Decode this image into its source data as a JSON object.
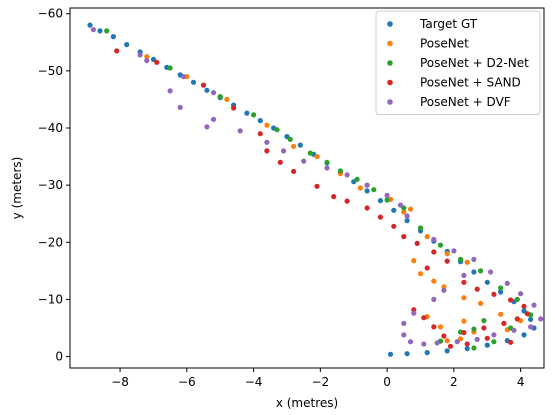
{
  "chart_data": {
    "type": "scatter",
    "title": "",
    "xlabel": "x (metres)",
    "ylabel": "y (meters)",
    "xlim": [
      -9.5,
      4.7
    ],
    "ylim": [
      2,
      -61
    ],
    "y_inverted": true,
    "xticks": [
      -8,
      -6,
      -4,
      -2,
      0,
      2,
      4
    ],
    "xtick_labels": [
      "−8",
      "−6",
      "−4",
      "−2",
      "0",
      "2",
      "4"
    ],
    "yticks": [
      0,
      -10,
      -20,
      -30,
      -40,
      -50,
      -60
    ],
    "ytick_labels": [
      "0",
      "−10",
      "−20",
      "−30",
      "−40",
      "−50",
      "−60"
    ],
    "grid": false,
    "legend_position": "top-right",
    "series": [
      {
        "name": "Target GT",
        "color": "#1f77b4",
        "points": [
          [
            -8.9,
            -58
          ],
          [
            -8.6,
            -57
          ],
          [
            -8.2,
            -56
          ],
          [
            -7.8,
            -54.6
          ],
          [
            -7.4,
            -53.3
          ],
          [
            -7,
            -52
          ],
          [
            -6.6,
            -50.6
          ],
          [
            -6.2,
            -49.3
          ],
          [
            -5.8,
            -48
          ],
          [
            -5.4,
            -46.6
          ],
          [
            -5,
            -45.3
          ],
          [
            -4.6,
            -44
          ],
          [
            -4.2,
            -42.6
          ],
          [
            -3.8,
            -41.3
          ],
          [
            -3.4,
            -40
          ],
          [
            -3,
            -38.5
          ],
          [
            -2.6,
            -37
          ],
          [
            -2.2,
            -35.4
          ],
          [
            -1.8,
            -33.9
          ],
          [
            -1.4,
            -32.3
          ],
          [
            -1,
            -30.6
          ],
          [
            -0.6,
            -29
          ],
          [
            -0.2,
            -27.3
          ],
          [
            0.2,
            -25.6
          ],
          [
            0.6,
            -23.8
          ],
          [
            1,
            -22
          ],
          [
            1.4,
            -20.2
          ],
          [
            1.8,
            -18.4
          ],
          [
            2.2,
            -16.6
          ],
          [
            2.6,
            -14.8
          ],
          [
            3,
            -13
          ],
          [
            3.4,
            -11.3
          ],
          [
            3.8,
            -9.6
          ],
          [
            4.1,
            -8
          ],
          [
            4.3,
            -6.5
          ],
          [
            4.4,
            -5
          ],
          [
            4.1,
            -3.8
          ],
          [
            3.6,
            -2.8
          ],
          [
            3,
            -2
          ],
          [
            2.4,
            -1.4
          ],
          [
            1.8,
            -1
          ],
          [
            1.2,
            -0.7
          ],
          [
            0.6,
            -0.5
          ],
          [
            0.1,
            -0.4
          ]
        ]
      },
      {
        "name": "PoseNet",
        "color": "#ff7f0e",
        "points": [
          [
            -7.2,
            -52.5
          ],
          [
            -6,
            -49
          ],
          [
            -4.8,
            -45
          ],
          [
            -3.6,
            -40.5
          ],
          [
            -2.8,
            -36.8
          ],
          [
            -2.1,
            -35
          ],
          [
            -1.4,
            -32
          ],
          [
            -0.8,
            -29.5
          ],
          [
            0.5,
            -25.3
          ],
          [
            0.7,
            -25.8
          ],
          [
            0.1,
            -27.5
          ],
          [
            1.2,
            -21
          ],
          [
            1.8,
            -18
          ],
          [
            2.4,
            -16.5
          ],
          [
            0.8,
            -16.8
          ],
          [
            1,
            -14.5
          ],
          [
            1.4,
            -13.2
          ],
          [
            1.7,
            -12.2
          ],
          [
            2.3,
            -10.3
          ],
          [
            2.8,
            -9.3
          ],
          [
            3.4,
            -7.4
          ],
          [
            1.2,
            -7
          ],
          [
            1.6,
            -5.2
          ],
          [
            2.3,
            -6.2
          ],
          [
            2.6,
            -4.3
          ],
          [
            3.6,
            -4.7
          ],
          [
            4,
            -6.3
          ],
          [
            2.2,
            -3.1
          ],
          [
            1.8,
            -2.8
          ]
        ]
      },
      {
        "name": "PoseNet + D2-Net",
        "color": "#2ca02c",
        "points": [
          [
            -8.4,
            -57
          ],
          [
            -6.5,
            -50.5
          ],
          [
            -5,
            -45.5
          ],
          [
            -4,
            -42.3
          ],
          [
            -3.3,
            -39.7
          ],
          [
            -2.9,
            -38
          ],
          [
            -2.3,
            -35.6
          ],
          [
            -1.8,
            -34
          ],
          [
            -1.4,
            -32.5
          ],
          [
            -0.9,
            -31
          ],
          [
            -0.4,
            -29.2
          ],
          [
            0,
            -27.4
          ],
          [
            0.5,
            -26
          ],
          [
            1,
            -22.5
          ],
          [
            1.6,
            -19.5
          ],
          [
            2.2,
            -17
          ],
          [
            2.8,
            -15
          ],
          [
            3.4,
            -12
          ],
          [
            3.9,
            -10
          ],
          [
            4.3,
            -7.3
          ],
          [
            2.6,
            -4.8
          ],
          [
            2.2,
            -4.3
          ],
          [
            1.6,
            -2.7
          ],
          [
            2.6,
            -1.5
          ],
          [
            3.2,
            -2.6
          ],
          [
            3.7,
            -5
          ],
          [
            2.9,
            -6.3
          ]
        ]
      },
      {
        "name": "PoseNet + SAND",
        "color": "#d62728",
        "points": [
          [
            -8.1,
            -53.5
          ],
          [
            -6.9,
            -51.5
          ],
          [
            -5.5,
            -47.5
          ],
          [
            -4.6,
            -43.5
          ],
          [
            -3.8,
            -39
          ],
          [
            -3.6,
            -36
          ],
          [
            -3.2,
            -34
          ],
          [
            -2.8,
            -32.4
          ],
          [
            -2.1,
            -29.8
          ],
          [
            -1.6,
            -28
          ],
          [
            -1.2,
            -27.2
          ],
          [
            -0.6,
            -26
          ],
          [
            -0.2,
            -24.4
          ],
          [
            0.2,
            -22.8
          ],
          [
            0.5,
            -21
          ],
          [
            0.9,
            -19.8
          ],
          [
            1.4,
            -18.3
          ],
          [
            1.8,
            -16.7
          ],
          [
            1.2,
            -15.5
          ],
          [
            2.3,
            -13
          ],
          [
            2.7,
            -11.8
          ],
          [
            3.2,
            -10.9
          ],
          [
            3.7,
            -9.9
          ],
          [
            4.1,
            -8.8
          ],
          [
            4.2,
            -7.5
          ],
          [
            3.9,
            -6.6
          ],
          [
            3.5,
            -5.8
          ],
          [
            2.9,
            -5
          ],
          [
            2.3,
            -4.2
          ],
          [
            1.7,
            -3.6
          ],
          [
            1.4,
            -5.2
          ],
          [
            1.1,
            -6.8
          ],
          [
            0.8,
            -8.2
          ],
          [
            3,
            -3.2
          ],
          [
            3.7,
            -2.5
          ],
          [
            2.4,
            -2.2
          ],
          [
            1.9,
            -1.8
          ]
        ]
      },
      {
        "name": "PoseNet + DVF",
        "color": "#9467bd",
        "points": [
          [
            -8.8,
            -57.2
          ],
          [
            -7.4,
            -52.8
          ],
          [
            -7.2,
            -51.8
          ],
          [
            -6.1,
            -49
          ],
          [
            -5.2,
            -46.2
          ],
          [
            -6.5,
            -46.5
          ],
          [
            -6.2,
            -43.6
          ],
          [
            -5.2,
            -41.5
          ],
          [
            -5.4,
            -40.2
          ],
          [
            -4.4,
            -39.5
          ],
          [
            -3.6,
            -37.5
          ],
          [
            -3.1,
            -36
          ],
          [
            -2.5,
            -34.2
          ],
          [
            -1.8,
            -33
          ],
          [
            -1.2,
            -31.8
          ],
          [
            -0.6,
            -30
          ],
          [
            0,
            -28.2
          ],
          [
            0.4,
            -26.5
          ],
          [
            0.6,
            -24.6
          ],
          [
            1.4,
            -20.5
          ],
          [
            2,
            -18.5
          ],
          [
            2.6,
            -17
          ],
          [
            3.1,
            -14.8
          ],
          [
            3.6,
            -12.8
          ],
          [
            4,
            -11
          ],
          [
            4.4,
            -9
          ],
          [
            4.6,
            -6.6
          ],
          [
            4.3,
            -5.2
          ],
          [
            3.8,
            -4.6
          ],
          [
            3.2,
            -3.8
          ],
          [
            2.7,
            -3
          ],
          [
            2.1,
            -2.6
          ],
          [
            1.5,
            -2.4
          ],
          [
            1.1,
            -2.2
          ],
          [
            0.7,
            -2.6
          ],
          [
            0.5,
            -3.8
          ],
          [
            0.5,
            -5.8
          ],
          [
            0.8,
            -7.6
          ],
          [
            1.4,
            -10
          ],
          [
            1.7,
            -11.6
          ],
          [
            2.3,
            -14.2
          ]
        ]
      }
    ]
  }
}
